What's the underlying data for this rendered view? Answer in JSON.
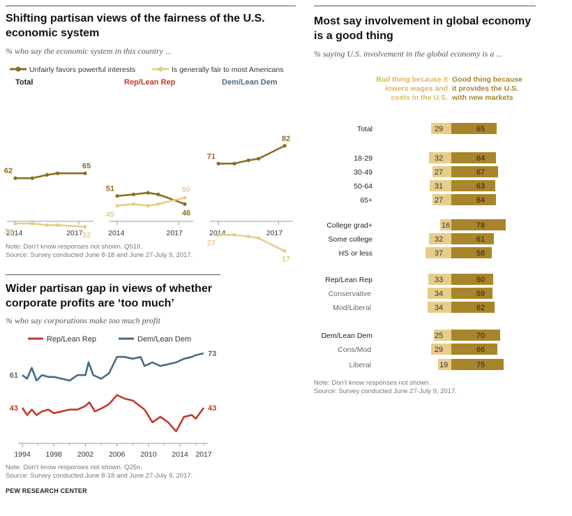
{
  "footer": "PEW RESEARCH CENTER",
  "panel1": {
    "title_line1": "Shifting partisan views of the fairness of the U.S.",
    "title_line2": "economic system",
    "subtitle": "% who say the economic system in this country ...",
    "note1": "Note: Don’t know responses not shown. Q51II.",
    "note2": "Source: Survey conducted June 8-18 and June 27-July 9, 2017.",
    "colors": {
      "dark": "#8c6d1f",
      "light": "#e6cd8a"
    }
  },
  "panel2": {
    "title_line1": "Wider partisan gap in views of whether",
    "title_line2": "corporate profits are ‘too much’",
    "subtitle": "% who say corporations make too much profit",
    "note1": "Note: Don’t know responses not shown. Q25n.",
    "note2": "Source: Survey conducted June 8-18 and June 27-July 9, 2017.",
    "colors": {
      "rep": "#c0392b",
      "dem": "#456b87"
    }
  },
  "panel3": {
    "title_line1": "Most say involvement in global economy",
    "title_line2": "is a good thing",
    "subtitle": "% saying U.S. involvement in the global economy is a ...",
    "bad_header": [
      "Bad thing because it",
      "lowers wages and",
      "costs in the U.S."
    ],
    "good_header": [
      "Good thing because",
      "it provides  the U.S.",
      "with new markets"
    ],
    "note1": "Note: Don’t know responses not shown.",
    "note2": "Source: Survey conducted June 27-July 9, 2017.",
    "colors": {
      "bad": "#e6cd8a",
      "good": "#a8852a"
    }
  },
  "chart_data": [
    {
      "type": "line",
      "title": "Shifting partisan views of the fairness of the U.S. economic system",
      "legend": [
        "Unfairly favors powerful interests",
        "Is generally fair to most Americans"
      ],
      "x_tick_labels": [
        "2014",
        "2017"
      ],
      "ylim": [
        0,
        100
      ],
      "panels": [
        {
          "name": "Total",
          "series": [
            {
              "name": "Unfairly favors powerful interests",
              "x": [
                2014.0,
                2014.8,
                2015.5,
                2016.0,
                2017.3
              ],
              "values": [
                62,
                62,
                64,
                65,
                65
              ],
              "labels": [
                "62",
                "65"
              ]
            },
            {
              "name": "Is generally fair to most Americans",
              "x": [
                2014.0,
                2014.8,
                2015.5,
                2016.0,
                2017.3
              ],
              "values": [
                34,
                34,
                33,
                33,
                32
              ],
              "labels": [
                "34",
                "32"
              ]
            }
          ]
        },
        {
          "name": "Rep/Lean Rep",
          "series": [
            {
              "name": "Unfairly favors powerful interests",
              "x": [
                2014.0,
                2014.8,
                2015.5,
                2016.0,
                2017.3
              ],
              "values": [
                51,
                52,
                53,
                52,
                46
              ],
              "labels": [
                "51",
                "46"
              ]
            },
            {
              "name": "Is generally fair to most Americans",
              "x": [
                2014.0,
                2014.8,
                2015.5,
                2016.0,
                2017.3
              ],
              "values": [
                45,
                46,
                45,
                46,
                50
              ],
              "labels": [
                "45",
                "50"
              ]
            }
          ]
        },
        {
          "name": "Dem/Lean Dem",
          "series": [
            {
              "name": "Unfairly favors powerful interests",
              "x": [
                2014.0,
                2014.8,
                2015.5,
                2016.0,
                2017.3
              ],
              "values": [
                71,
                71,
                73,
                74,
                82
              ],
              "labels": [
                "71",
                "82"
              ]
            },
            {
              "name": "Is generally fair to most Americans",
              "x": [
                2014.0,
                2014.8,
                2015.5,
                2016.0,
                2017.3
              ],
              "values": [
                27,
                27,
                26,
                25,
                17
              ],
              "labels": [
                "27",
                "17"
              ]
            }
          ]
        }
      ]
    },
    {
      "type": "line",
      "title": "Wider partisan gap in views of whether corporate profits are ‘too much’",
      "legend": [
        "Rep/Lean Rep",
        "Dem/Lean Dem"
      ],
      "x_tick_labels": [
        "1994",
        "1998",
        "2002",
        "2006",
        "2010",
        "2014",
        "2017"
      ],
      "xlim": [
        1994,
        2017
      ],
      "ylim": [
        20,
        90
      ],
      "series": [
        {
          "name": "Rep/Lean Rep",
          "start_label": "43",
          "end_label": "43",
          "x": [
            1994.0,
            1994.6,
            1995.2,
            1995.8,
            1996.5,
            1997.3,
            1998.0,
            1999.0,
            2000.0,
            2001.0,
            2002.0,
            2002.5,
            2003.2,
            2004.2,
            2005.0,
            2006.0,
            2007.0,
            2008.0,
            2009.5,
            2010.5,
            2011.5,
            2012.5,
            2013.5,
            2014.5,
            2015.5,
            2016.0,
            2017.0
          ],
          "values": [
            43,
            39,
            42,
            39,
            41,
            42,
            40,
            41,
            42,
            42,
            44,
            46,
            41,
            43,
            45,
            50,
            48,
            47,
            42,
            35,
            38,
            35,
            30,
            38,
            39,
            37,
            43
          ]
        },
        {
          "name": "Dem/Lean Dem",
          "start_label": "61",
          "end_label": "73",
          "x": [
            1994.0,
            1994.6,
            1995.2,
            1995.8,
            1996.5,
            1997.3,
            1998.0,
            1999.0,
            2000.0,
            2001.0,
            2002.0,
            2002.4,
            2003.0,
            2004.0,
            2005.0,
            2006.0,
            2007.0,
            2008.0,
            2009.0,
            2009.5,
            2010.5,
            2011.5,
            2012.5,
            2013.5,
            2014.5,
            2015.5,
            2016.0,
            2017.0
          ],
          "values": [
            61,
            59,
            65,
            58,
            61,
            60,
            60,
            59,
            58,
            61,
            61,
            68,
            61,
            59,
            62,
            71,
            71,
            70,
            71,
            66,
            68,
            66,
            67,
            68,
            70,
            71,
            72,
            73
          ]
        }
      ]
    },
    {
      "type": "bar",
      "subtype": "diverging",
      "title": "Most say involvement in global economy is a good thing",
      "legend": [
        "Bad thing because it lowers wages and costs in the U.S.",
        "Good thing because it provides the U.S. with new markets"
      ],
      "categories": [
        "Total",
        "18-29",
        "30-49",
        "50-64",
        "65+",
        "College grad+",
        "Some college",
        "HS or less",
        "Rep/Lean Rep",
        "Conservative",
        "Mod/Liberal",
        "Dem/Lean Dem",
        "Cons/Mod",
        "Liberal"
      ],
      "category_kind": [
        "group",
        "sub",
        "sub",
        "sub",
        "sub",
        "sub",
        "sub",
        "sub",
        "group",
        "indent",
        "indent",
        "group",
        "indent",
        "indent"
      ],
      "series": [
        {
          "name": "Bad thing",
          "values": [
            29,
            32,
            27,
            31,
            27,
            16,
            32,
            37,
            33,
            34,
            34,
            25,
            29,
            19
          ]
        },
        {
          "name": "Good thing",
          "values": [
            65,
            64,
            67,
            63,
            64,
            78,
            61,
            58,
            60,
            59,
            62,
            70,
            66,
            75
          ]
        }
      ]
    }
  ]
}
